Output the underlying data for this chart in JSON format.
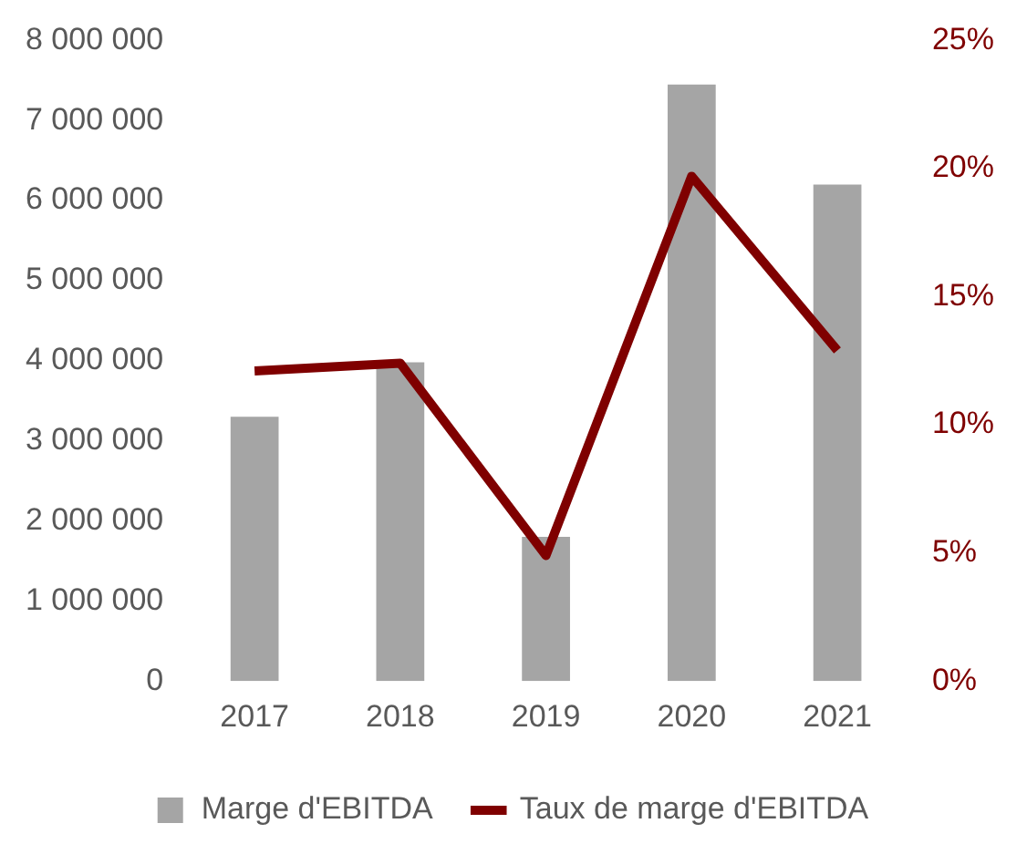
{
  "chart_data": {
    "type": "bar",
    "categories": [
      "2017",
      "2018",
      "2019",
      "2020",
      "2021"
    ],
    "series": [
      {
        "name": "Marge d'EBITDA",
        "color": "#a5a5a5",
        "values": [
          3300000,
          3980000,
          1800000,
          7450000,
          6200000
        ]
      },
      {
        "name": "Taux de marge d'EBITDA",
        "type": "line",
        "axis": "y2",
        "color": "#7f0000",
        "values": [
          12.1,
          12.4,
          4.9,
          19.7,
          12.9
        ]
      }
    ],
    "ylim": [
      0,
      8000000
    ],
    "yticks": [
      {
        "value": 0,
        "label": "0"
      },
      {
        "value": 1000000,
        "label": "1 000 000"
      },
      {
        "value": 2000000,
        "label": "2 000 000"
      },
      {
        "value": 3000000,
        "label": "3 000 000"
      },
      {
        "value": 4000000,
        "label": "4 000 000"
      },
      {
        "value": 5000000,
        "label": "5 000 000"
      },
      {
        "value": 6000000,
        "label": "6 000 000"
      },
      {
        "value": 7000000,
        "label": "7 000 000"
      },
      {
        "value": 8000000,
        "label": "8 000 000"
      }
    ],
    "y2lim": [
      0,
      25
    ],
    "y2ticks": [
      {
        "value": 0,
        "label": "0%"
      },
      {
        "value": 5,
        "label": "5%"
      },
      {
        "value": 10,
        "label": "10%"
      },
      {
        "value": 15,
        "label": "15%"
      },
      {
        "value": 20,
        "label": "20%"
      },
      {
        "value": 25,
        "label": "25%"
      }
    ],
    "grid": false,
    "legend": "bottom",
    "marker": "none"
  }
}
